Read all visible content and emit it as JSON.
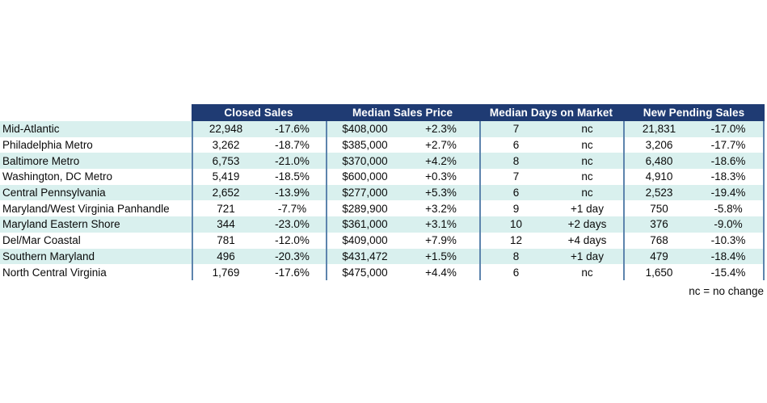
{
  "chart_data": {
    "type": "table",
    "column_groups": [
      {
        "label": "Closed Sales"
      },
      {
        "label": "Median Sales Price"
      },
      {
        "label": "Median Days on Market"
      },
      {
        "label": "New Pending Sales"
      }
    ],
    "sub_columns": [
      "value",
      "yoy_change"
    ],
    "rows": [
      {
        "label": "Mid-Atlantic",
        "cells": [
          "22,948",
          "-17.6%",
          "$408,000",
          "+2.3%",
          "7",
          "nc",
          "21,831",
          "-17.0%"
        ]
      },
      {
        "label": "Philadelphia Metro",
        "cells": [
          "3,262",
          "-18.7%",
          "$385,000",
          "+2.7%",
          "6",
          "nc",
          "3,206",
          "-17.7%"
        ]
      },
      {
        "label": "Baltimore Metro",
        "cells": [
          "6,753",
          "-21.0%",
          "$370,000",
          "+4.2%",
          "8",
          "nc",
          "6,480",
          "-18.6%"
        ]
      },
      {
        "label": "Washington, DC Metro",
        "cells": [
          "5,419",
          "-18.5%",
          "$600,000",
          "+0.3%",
          "7",
          "nc",
          "4,910",
          "-18.3%"
        ]
      },
      {
        "label": "Central Pennsylvania",
        "cells": [
          "2,652",
          "-13.9%",
          "$277,000",
          "+5.3%",
          "6",
          "nc",
          "2,523",
          "-19.4%"
        ]
      },
      {
        "label": "Maryland/West Virginia Panhandle",
        "cells": [
          "721",
          "-7.7%",
          "$289,900",
          "+3.2%",
          "9",
          "+1 day",
          "750",
          "-5.8%"
        ]
      },
      {
        "label": "Maryland Eastern Shore",
        "cells": [
          "344",
          "-23.0%",
          "$361,000",
          "+3.1%",
          "10",
          "+2 days",
          "376",
          "-9.0%"
        ]
      },
      {
        "label": "Del/Mar Coastal",
        "cells": [
          "781",
          "-12.0%",
          "$409,000",
          "+7.9%",
          "12",
          "+4 days",
          "768",
          "-10.3%"
        ]
      },
      {
        "label": "Southern Maryland",
        "cells": [
          "496",
          "-20.3%",
          "$431,472",
          "+1.5%",
          "8",
          "+1 day",
          "479",
          "-18.4%"
        ]
      },
      {
        "label": "North Central Virginia",
        "cells": [
          "1,769",
          "-17.6%",
          "$475,000",
          "+4.4%",
          "6",
          "nc",
          "1,650",
          "-15.4%"
        ]
      }
    ],
    "footnote": "nc = no change",
    "layout": {
      "legend": "none",
      "grid": "vertical-group-separators",
      "striped_rows": true
    }
  },
  "colors": {
    "header_bg": "#1f3b73",
    "header_text": "#ffffff",
    "stripe": "#d9f0ee",
    "row_alt": "#ffffff",
    "grid_line": "#5d84ad",
    "text": "#0a0a0a"
  }
}
